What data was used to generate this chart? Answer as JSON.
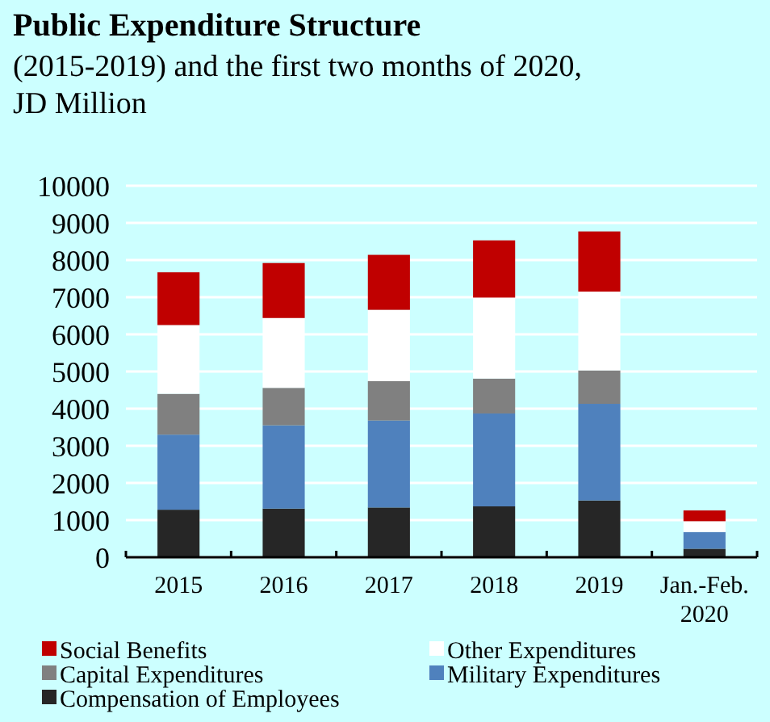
{
  "chart_data": {
    "type": "bar",
    "stacked": true,
    "title": "Public Expenditure Structure",
    "subtitle": "(2015-2019) and the first two months of 2020, JD Million",
    "categories": [
      "2015",
      "2016",
      "2017",
      "2018",
      "2019",
      "Jan.-Feb. 2020"
    ],
    "series": [
      {
        "name": "Compensation of Employees",
        "color": "#262626",
        "values": [
          1280,
          1310,
          1340,
          1370,
          1530,
          230
        ]
      },
      {
        "name": "Military Expenditures",
        "color": "#4f81bd",
        "values": [
          2020,
          2240,
          2340,
          2500,
          2600,
          450
        ]
      },
      {
        "name": "Capital Expenditures",
        "color": "#808080",
        "values": [
          1100,
          1010,
          1060,
          940,
          900,
          0
        ]
      },
      {
        "name": "Other Expenditures",
        "color": "#ffffff",
        "values": [
          1850,
          1880,
          1920,
          2180,
          2120,
          290
        ]
      },
      {
        "name": "Social Benefits",
        "color": "#c00000",
        "values": [
          1420,
          1480,
          1480,
          1540,
          1620,
          290
        ]
      }
    ],
    "ylim": [
      0,
      10000
    ],
    "yticks": [
      0,
      1000,
      2000,
      3000,
      4000,
      5000,
      6000,
      7000,
      8000,
      9000,
      10000
    ],
    "grid": "y",
    "legend": "bottom"
  }
}
